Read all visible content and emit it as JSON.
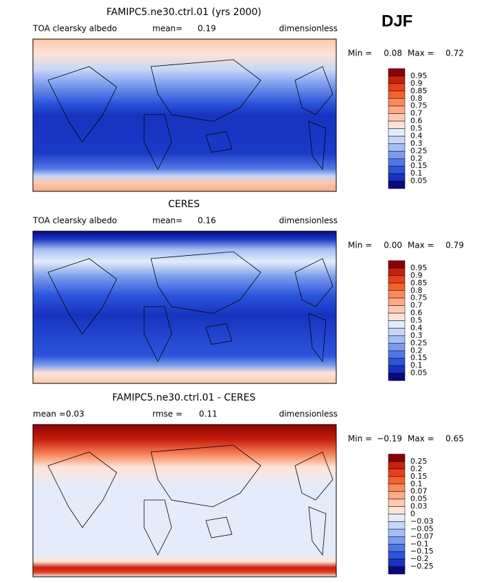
{
  "season": "DJF",
  "colorbar_colors": [
    "#8c0000",
    "#c8200e",
    "#e8401a",
    "#f4622e",
    "#f88a5e",
    "#fbab88",
    "#fdc9b0",
    "#fde4d6",
    "#e4ecfb",
    "#c6d6f7",
    "#a4bdf2",
    "#7b9cec",
    "#5078e4",
    "#2c55dc",
    "#1733c0",
    "#0a0a80"
  ],
  "panels": [
    {
      "title": "FAMIPC5.ne30.ctrl.01 (yrs 2000)",
      "variable": "TOA clearsky albedo",
      "stat1_label": "mean=",
      "stat1_value": "0.19",
      "units": "dimensionless",
      "min_label": "Min =",
      "min_value": "0.08",
      "max_label": "Max =",
      "max_value": "0.72",
      "colorbar_labels": [
        "0.95",
        "0.9",
        "0.85",
        "0.8",
        "0.75",
        "0.7",
        "0.6",
        "0.5",
        "0.4",
        "0.3",
        "0.25",
        "0.2",
        "0.15",
        "0.1",
        "0.05"
      ]
    },
    {
      "title": "CERES",
      "variable": "TOA clearsky albedo",
      "stat1_label": "mean=",
      "stat1_value": "0.16",
      "units": "dimensionless",
      "min_label": "Min =",
      "min_value": "0.00",
      "max_label": "Max =",
      "max_value": "0.79",
      "colorbar_labels": [
        "0.95",
        "0.9",
        "0.85",
        "0.8",
        "0.75",
        "0.7",
        "0.6",
        "0.5",
        "0.4",
        "0.3",
        "0.25",
        "0.2",
        "0.15",
        "0.1",
        "0.05"
      ]
    },
    {
      "title": "FAMIPC5.ne30.ctrl.01 - CERES",
      "stat1_label": "mean =",
      "stat1_value": "0.03",
      "stat2_label": "rmse =",
      "stat2_value": "0.11",
      "units": "dimensionless",
      "min_label": "Min =",
      "min_value": "−0.19",
      "max_label": "Max =",
      "max_value": "0.65",
      "colorbar_labels": [
        "0.25",
        "0.2",
        "0.15",
        "0.1",
        "0.07",
        "0.05",
        "0.03",
        "0",
        "−0.03",
        "−0.05",
        "−0.07",
        "−0.1",
        "−0.15",
        "−0.2",
        "−0.25"
      ]
    }
  ]
}
